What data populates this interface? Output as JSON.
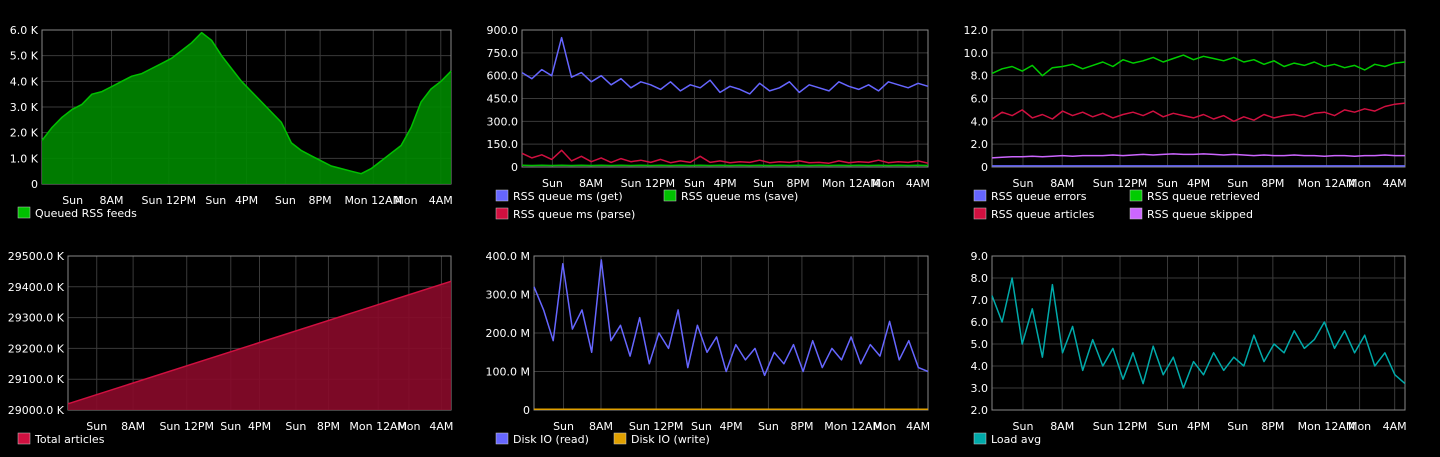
{
  "x_ticks": [
    "Sun",
    "8AM",
    "Sun 12PM",
    "Sun",
    "4PM",
    "Sun",
    "8PM",
    "Mon 12AM",
    "Mon",
    "4AM"
  ],
  "chart_data": [
    {
      "id": "queued-rss",
      "type": "area",
      "title": "",
      "ylim": [
        0,
        6000
      ],
      "y_ticks": [
        {
          "v": 0,
          "label": "0"
        },
        {
          "v": 1000,
          "label": "1.0 K"
        },
        {
          "v": 2000,
          "label": "2.0 K"
        },
        {
          "v": 3000,
          "label": "3.0 K"
        },
        {
          "v": 4000,
          "label": "4.0 K"
        },
        {
          "v": 5000,
          "label": "5.0 K"
        },
        {
          "v": 6000,
          "label": "6.0 K"
        }
      ],
      "series": [
        {
          "name": "Queued RSS feeds",
          "color": "#00c000",
          "fill": "#008800",
          "values": [
            1700,
            2200,
            2600,
            2900,
            3100,
            3500,
            3600,
            3800,
            4000,
            4200,
            4300,
            4500,
            4700,
            4900,
            5200,
            5500,
            5900,
            5600,
            5000,
            4500,
            4000,
            3600,
            3200,
            2800,
            2400,
            1600,
            1300,
            1100,
            900,
            700,
            600,
            500,
            400,
            600,
            900,
            1200,
            1500,
            2200,
            3200,
            3700,
            4000,
            4400
          ]
        }
      ],
      "legend": [
        [
          "Queued RSS feeds"
        ]
      ]
    },
    {
      "id": "rss-queue-ms",
      "type": "line",
      "title": "",
      "ylim": [
        0,
        900
      ],
      "y_ticks": [
        {
          "v": 0,
          "label": "0"
        },
        {
          "v": 150,
          "label": "150.0"
        },
        {
          "v": 300,
          "label": "300.0"
        },
        {
          "v": 450,
          "label": "450.0"
        },
        {
          "v": 600,
          "label": "600.0"
        },
        {
          "v": 750,
          "label": "750.0"
        },
        {
          "v": 900,
          "label": "900.0"
        }
      ],
      "series": [
        {
          "name": "RSS queue ms (get)",
          "color": "#6666ff",
          "values": [
            620,
            580,
            640,
            600,
            850,
            590,
            620,
            560,
            600,
            540,
            580,
            520,
            560,
            540,
            510,
            560,
            500,
            540,
            520,
            570,
            490,
            530,
            510,
            480,
            550,
            500,
            520,
            560,
            490,
            540,
            520,
            500,
            560,
            530,
            510,
            540,
            500,
            560,
            540,
            520,
            550,
            530
          ]
        },
        {
          "name": "RSS queue ms (parse)",
          "color": "#d01040",
          "values": [
            90,
            60,
            80,
            50,
            110,
            40,
            70,
            35,
            60,
            30,
            55,
            35,
            45,
            30,
            50,
            28,
            40,
            30,
            70,
            30,
            40,
            28,
            35,
            30,
            45,
            28,
            35,
            30,
            40,
            28,
            30,
            25,
            40,
            28,
            35,
            30,
            45,
            28,
            35,
            30,
            40,
            25
          ]
        },
        {
          "name": "RSS queue ms (save)",
          "color": "#00c000",
          "values": [
            12,
            10,
            11,
            10,
            12,
            10,
            11,
            10,
            11,
            10,
            11,
            10,
            11,
            10,
            11,
            10,
            11,
            10,
            11,
            10,
            11,
            10,
            11,
            10,
            11,
            10,
            11,
            10,
            11,
            10,
            11,
            10,
            11,
            10,
            11,
            10,
            11,
            10,
            11,
            10,
            11,
            10
          ]
        }
      ],
      "legend": [
        [
          "RSS queue ms (get)",
          "RSS queue ms (save)"
        ],
        [
          "RSS queue ms (parse)"
        ]
      ]
    },
    {
      "id": "rss-queue-counts",
      "type": "line",
      "title": "",
      "ylim": [
        0,
        12
      ],
      "y_ticks": [
        {
          "v": 0,
          "label": "0"
        },
        {
          "v": 2,
          "label": "2.0"
        },
        {
          "v": 4,
          "label": "4.0"
        },
        {
          "v": 6,
          "label": "6.0"
        },
        {
          "v": 8,
          "label": "8.0"
        },
        {
          "v": 10,
          "label": "10.0"
        },
        {
          "v": 12,
          "label": "12.0"
        }
      ],
      "series": [
        {
          "name": "RSS queue retrieved",
          "color": "#00cc00",
          "values": [
            8.2,
            8.6,
            8.8,
            8.4,
            8.9,
            8.0,
            8.7,
            8.8,
            9.0,
            8.6,
            8.9,
            9.2,
            8.8,
            9.4,
            9.1,
            9.3,
            9.6,
            9.2,
            9.5,
            9.8,
            9.4,
            9.7,
            9.5,
            9.3,
            9.6,
            9.2,
            9.4,
            9.0,
            9.3,
            8.8,
            9.1,
            8.9,
            9.2,
            8.8,
            9.0,
            8.7,
            8.9,
            8.5,
            9.0,
            8.8,
            9.1,
            9.2
          ]
        },
        {
          "name": "RSS queue articles",
          "color": "#d01040",
          "values": [
            4.2,
            4.8,
            4.5,
            5.0,
            4.3,
            4.6,
            4.2,
            4.9,
            4.5,
            4.8,
            4.4,
            4.7,
            4.3,
            4.6,
            4.8,
            4.5,
            4.9,
            4.4,
            4.7,
            4.5,
            4.3,
            4.6,
            4.2,
            4.5,
            4.0,
            4.4,
            4.1,
            4.6,
            4.3,
            4.5,
            4.6,
            4.4,
            4.7,
            4.8,
            4.5,
            5.0,
            4.8,
            5.1,
            4.9,
            5.3,
            5.5,
            5.6
          ]
        },
        {
          "name": "RSS queue skipped",
          "color": "#cc66ff",
          "values": [
            0.8,
            0.85,
            0.9,
            0.9,
            0.95,
            0.9,
            0.95,
            1.0,
            0.95,
            1.0,
            1.0,
            1.0,
            1.05,
            1.0,
            1.05,
            1.1,
            1.05,
            1.1,
            1.15,
            1.1,
            1.1,
            1.15,
            1.1,
            1.05,
            1.1,
            1.05,
            1.0,
            1.05,
            1.0,
            1.0,
            1.05,
            1.0,
            1.0,
            0.95,
            1.0,
            1.0,
            0.95,
            1.0,
            1.0,
            1.05,
            1.0,
            1.0
          ]
        },
        {
          "name": "RSS queue errors",
          "color": "#6666ff",
          "values": [
            0.1,
            0.1,
            0.1,
            0.1,
            0.1,
            0.1,
            0.1,
            0.1,
            0.1,
            0.1,
            0.1,
            0.1,
            0.1,
            0.1,
            0.1,
            0.1,
            0.1,
            0.1,
            0.1,
            0.1,
            0.1,
            0.1,
            0.1,
            0.1,
            0.1,
            0.1,
            0.1,
            0.1,
            0.1,
            0.1,
            0.1,
            0.1,
            0.1,
            0.1,
            0.1,
            0.1,
            0.1,
            0.1,
            0.1,
            0.1,
            0.1,
            0.1
          ]
        }
      ],
      "legend": [
        [
          "RSS queue errors",
          "RSS queue retrieved"
        ],
        [
          "RSS queue articles",
          "RSS queue skipped"
        ]
      ]
    },
    {
      "id": "total-articles",
      "type": "area",
      "title": "",
      "ylim": [
        29000,
        29500
      ],
      "y_ticks": [
        {
          "v": 29000,
          "label": "29000.0 K"
        },
        {
          "v": 29100,
          "label": "29100.0 K"
        },
        {
          "v": 29200,
          "label": "29200.0 K"
        },
        {
          "v": 29300,
          "label": "29300.0 K"
        },
        {
          "v": 29400,
          "label": "29400.0 K"
        },
        {
          "v": 29500,
          "label": "29500.0 K"
        }
      ],
      "series": [
        {
          "name": "Total articles",
          "color": "#d01040",
          "fill": "#8a0a2a",
          "values": [
            29020,
            29418
          ]
        }
      ],
      "legend": [
        [
          "Total articles"
        ]
      ]
    },
    {
      "id": "disk-io",
      "type": "line",
      "title": "",
      "ylim": [
        0,
        400
      ],
      "y_ticks": [
        {
          "v": 0,
          "label": "0"
        },
        {
          "v": 100,
          "label": "100.0 M"
        },
        {
          "v": 200,
          "label": "200.0 M"
        },
        {
          "v": 300,
          "label": "300.0 M"
        },
        {
          "v": 400,
          "label": "400.0 M"
        }
      ],
      "series": [
        {
          "name": "Disk IO (read)",
          "color": "#6666ff",
          "values": [
            320,
            260,
            180,
            380,
            210,
            260,
            150,
            390,
            180,
            220,
            140,
            240,
            120,
            200,
            160,
            260,
            110,
            220,
            150,
            190,
            100,
            170,
            130,
            160,
            90,
            150,
            120,
            170,
            100,
            180,
            110,
            160,
            130,
            190,
            120,
            170,
            140,
            230,
            130,
            180,
            110,
            100
          ]
        },
        {
          "name": "Disk IO (write)",
          "color": "#e0a000",
          "values": [
            2,
            2,
            2,
            2,
            2,
            2,
            2,
            2,
            2,
            2,
            2,
            2,
            2,
            2,
            2,
            2,
            2,
            2,
            2,
            2,
            2,
            2,
            2,
            2,
            2,
            2,
            2,
            2,
            2,
            2,
            2,
            2,
            2,
            2,
            2,
            2,
            2,
            2,
            2,
            2,
            2,
            2
          ]
        }
      ],
      "legend": [
        [
          "Disk IO (read)",
          "Disk IO (write)"
        ]
      ]
    },
    {
      "id": "load-avg",
      "type": "line",
      "title": "",
      "ylim": [
        2,
        9
      ],
      "y_ticks": [
        {
          "v": 2,
          "label": "2.0"
        },
        {
          "v": 3,
          "label": "3.0"
        },
        {
          "v": 4,
          "label": "4.0"
        },
        {
          "v": 5,
          "label": "5.0"
        },
        {
          "v": 6,
          "label": "6.0"
        },
        {
          "v": 7,
          "label": "7.0"
        },
        {
          "v": 8,
          "label": "8.0"
        },
        {
          "v": 9,
          "label": "9.0"
        }
      ],
      "series": [
        {
          "name": "Load avg",
          "color": "#00aaaa",
          "values": [
            7.2,
            6.0,
            8.0,
            5.0,
            6.6,
            4.4,
            7.7,
            4.6,
            5.8,
            3.8,
            5.2,
            4.0,
            4.8,
            3.4,
            4.6,
            3.2,
            4.9,
            3.6,
            4.4,
            3.0,
            4.2,
            3.6,
            4.6,
            3.8,
            4.4,
            4.0,
            5.4,
            4.2,
            5.0,
            4.6,
            5.6,
            4.8,
            5.2,
            6.0,
            4.8,
            5.6,
            4.6,
            5.4,
            4.0,
            4.6,
            3.6,
            3.2
          ]
        }
      ],
      "legend": [
        [
          "Load avg"
        ]
      ]
    }
  ]
}
